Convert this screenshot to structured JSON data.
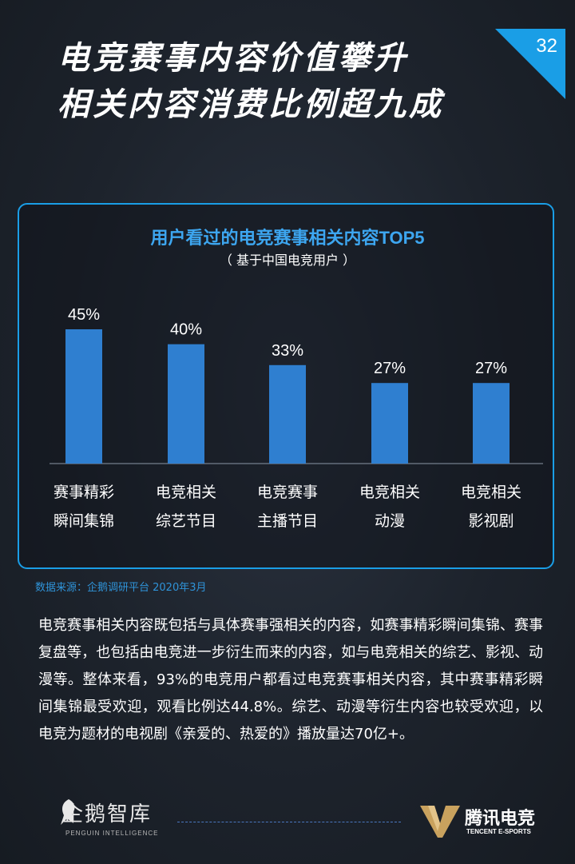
{
  "header": {
    "title_line1": "电竞赛事内容价值攀升",
    "title_line2": "相关内容消费比例超九成",
    "page_number": "32",
    "accent_color": "#1a9ee6"
  },
  "chart_data": {
    "type": "bar",
    "title": "用户看过的电竞赛事相关内容TOP5",
    "subtitle": "（ 基于中国电竞用户 ）",
    "categories": [
      [
        "赛事精彩",
        "瞬间集锦"
      ],
      [
        "电竞相关",
        "综艺节目"
      ],
      [
        "电竞赛事",
        "主播节目"
      ],
      [
        "电竞相关",
        "动漫"
      ],
      [
        "电竞相关",
        "影视剧"
      ]
    ],
    "values": [
      45,
      40,
      33,
      27,
      27
    ],
    "value_labels": [
      "45%",
      "40%",
      "33%",
      "27%",
      "27%"
    ],
    "ylim": [
      0,
      45
    ],
    "bar_color": "#2f7fd0",
    "grid": false,
    "legend": "none"
  },
  "source": "数据来源：企鹅调研平台  2020年3月",
  "body_text": "电竞赛事相关内容既包括与具体赛事强相关的内容，如赛事精彩瞬间集锦、赛事复盘等，也包括由电竞进一步衍生而来的内容，如与电竞相关的综艺、影视、动漫等。整体来看，93%的电竞用户都看过电竞赛事相关内容，其中赛事精彩瞬间集锦最受欢迎，观看比例达44.8%。综艺、动漫等衍生内容也较受欢迎，以电竞为题材的电视剧《亲爱的、热爱的》播放量达70亿+。",
  "footer": {
    "left_logo": "企鹅智库",
    "left_logo_sub": "PENGUIN INTELLIGENCE",
    "right_logo": "腾讯电竞",
    "right_logo_sub": "TENCENT E-SPORTS",
    "left_icon": "penguin-icon",
    "right_icon": "v-logo-icon"
  }
}
